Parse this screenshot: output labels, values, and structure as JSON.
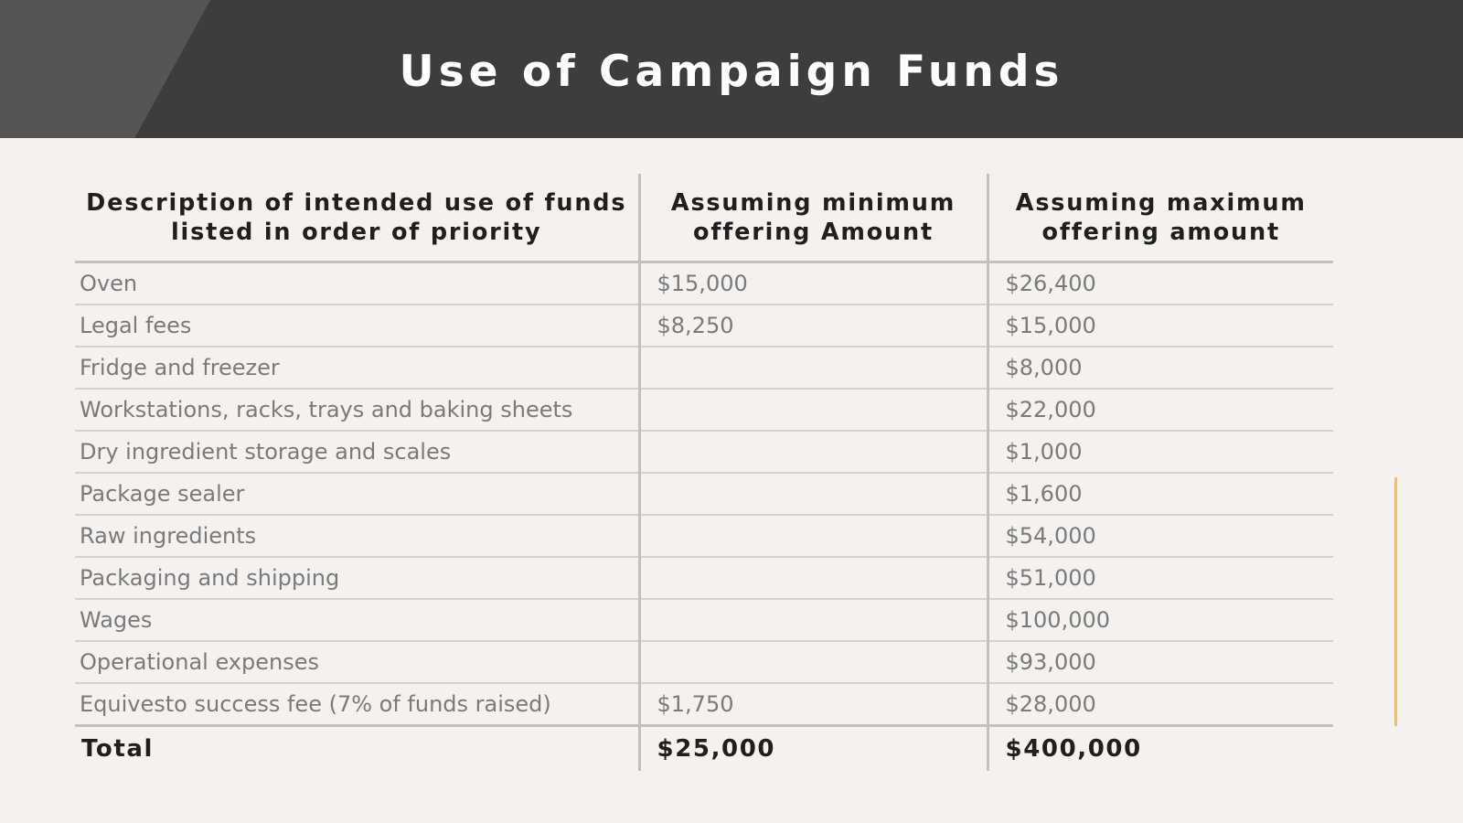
{
  "title": "Use of Campaign Funds",
  "headers": {
    "description": "Description of intended use of funds listed in order of priority",
    "minimum": "Assuming minimum offering Amount",
    "maximum": "Assuming maximum offering amount"
  },
  "rows": [
    {
      "description": "Oven",
      "minimum": "$15,000",
      "maximum": "$26,400"
    },
    {
      "description": "Legal fees",
      "minimum": "$8,250",
      "maximum": "$15,000"
    },
    {
      "description": "Fridge and freezer",
      "minimum": "",
      "maximum": "$8,000"
    },
    {
      "description": "Workstations, racks, trays and baking sheets",
      "minimum": "",
      "maximum": "$22,000"
    },
    {
      "description": "Dry ingredient storage and scales",
      "minimum": "",
      "maximum": "$1,000"
    },
    {
      "description": "Package sealer",
      "minimum": "",
      "maximum": "$1,600"
    },
    {
      "description": "Raw ingredients",
      "minimum": "",
      "maximum": "$54,000"
    },
    {
      "description": "Packaging and shipping",
      "minimum": "",
      "maximum": "$51,000"
    },
    {
      "description": "Wages",
      "minimum": "",
      "maximum": "$100,000"
    },
    {
      "description": "Operational expenses",
      "minimum": "",
      "maximum": "$93,000"
    },
    {
      "description": "Equivesto success fee (7% of funds raised)",
      "minimum": "$1,750",
      "maximum": "$28,000"
    }
  ],
  "total": {
    "label": "Total",
    "minimum": "$25,000",
    "maximum": "$400,000"
  },
  "colors": {
    "header_bg": "#3d3d3c",
    "header_accent": "#555554",
    "page_bg": "#f5f1ee",
    "side_line": "#f4c542"
  }
}
